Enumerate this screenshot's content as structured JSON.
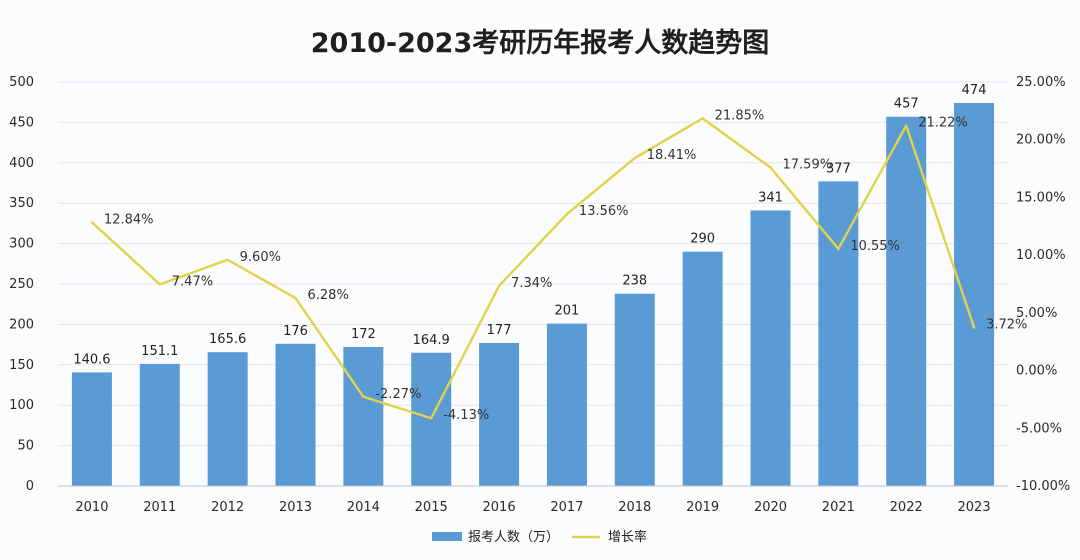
{
  "chart_data": {
    "type": "bar",
    "title": "2010-2023考研历年报考人数趋势图",
    "categories": [
      "2010",
      "2011",
      "2012",
      "2013",
      "2014",
      "2015",
      "2016",
      "2017",
      "2018",
      "2019",
      "2020",
      "2021",
      "2022",
      "2023"
    ],
    "series": [
      {
        "name": "报考人数（万）",
        "type": "bar",
        "axis": "left",
        "values": [
          140.6,
          151.1,
          165.6,
          176,
          172,
          164.9,
          177,
          201,
          238,
          290,
          341,
          377,
          457,
          474
        ],
        "labels": [
          "140.6",
          "151.1",
          "165.6",
          "176",
          "172",
          "164.9",
          "177",
          "201",
          "238",
          "290",
          "341",
          "377",
          "457",
          "474"
        ],
        "color": "#5b9bd5"
      },
      {
        "name": "增长率",
        "type": "line",
        "axis": "right",
        "values": [
          12.84,
          7.47,
          9.6,
          6.28,
          -2.27,
          -4.13,
          7.34,
          13.56,
          18.41,
          21.85,
          17.59,
          10.55,
          21.22,
          3.72
        ],
        "labels": [
          "12.84%",
          "7.47%",
          "9.60%",
          "6.28%",
          "-2.27%",
          "-4.13%",
          "7.34%",
          "13.56%",
          "18.41%",
          "21.85%",
          "17.59%",
          "10.55%",
          "21.22%",
          "3.72%"
        ],
        "color": "#e0d34a"
      }
    ],
    "y_left": {
      "min": 0,
      "max": 500,
      "ticks": [
        0,
        50,
        100,
        150,
        200,
        250,
        300,
        350,
        400,
        450,
        500
      ],
      "tick_labels": [
        "0",
        "50",
        "100",
        "150",
        "200",
        "250",
        "300",
        "350",
        "400",
        "450",
        "500"
      ]
    },
    "y_right": {
      "min": -10,
      "max": 25,
      "ticks": [
        -10,
        -5,
        0,
        5,
        10,
        15,
        20,
        25
      ],
      "tick_labels": [
        "-10.00%",
        "-5.00%",
        "0.00%",
        "5.00%",
        "10.00%",
        "15.00%",
        "20.00%",
        "25.00%"
      ]
    },
    "grid": true,
    "legend": {
      "position": "bottom",
      "items": [
        {
          "label": "报考人数（万）",
          "symbol": "bar",
          "color": "#5b9bd5"
        },
        {
          "label": "增长率",
          "symbol": "line",
          "color": "#e0d34a"
        }
      ]
    },
    "colors": {
      "grid": "#e3e6ea",
      "axis": "#bfc4ca"
    }
  }
}
